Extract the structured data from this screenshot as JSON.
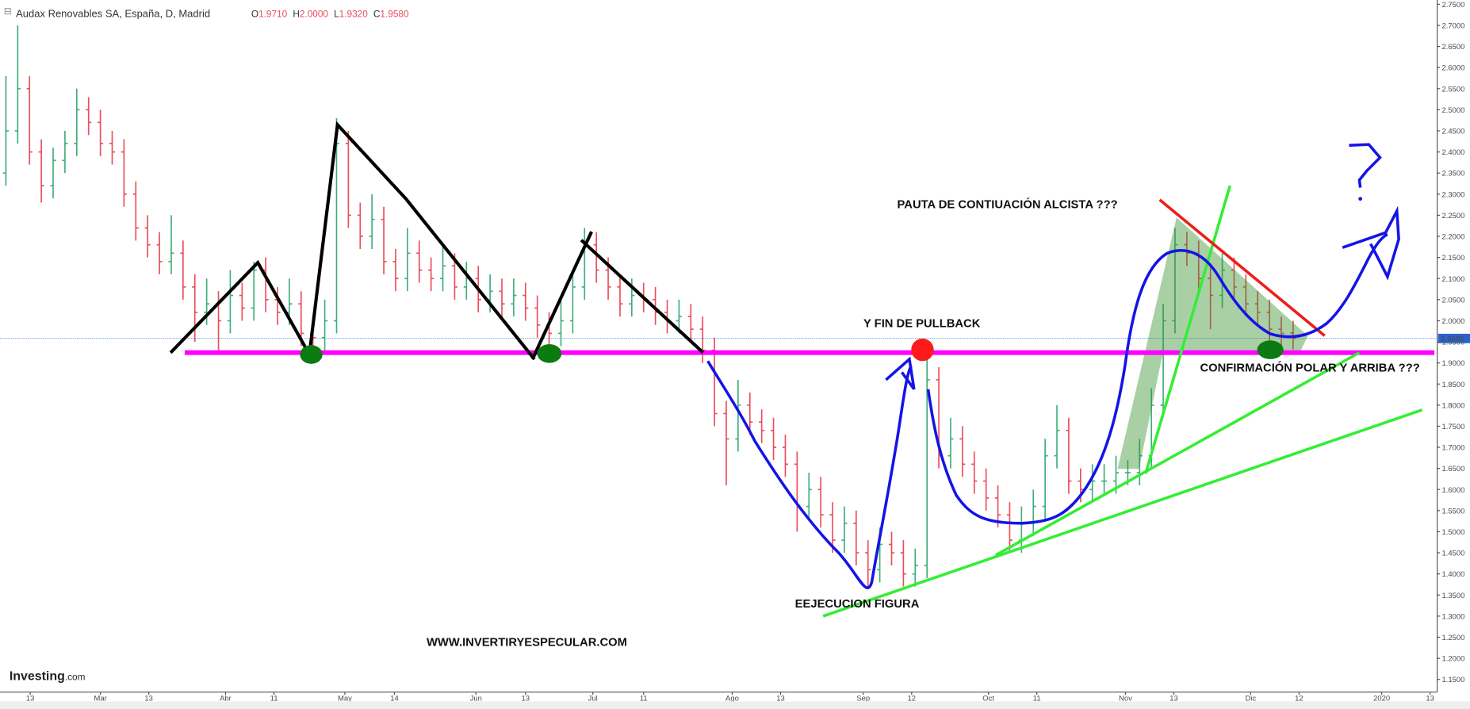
{
  "header": {
    "title": "Audax Renovables SA, España, D, Madrid",
    "ohlc": [
      {
        "key": "O",
        "value": "1.9710"
      },
      {
        "key": "H",
        "value": "2.0000"
      },
      {
        "key": "L",
        "value": "1.9320"
      },
      {
        "key": "C",
        "value": "1.9580"
      }
    ]
  },
  "logo": {
    "brand": "Investing",
    "suffix": ".com"
  },
  "chart_data": {
    "type": "ohlc",
    "up_color": "#3fae7a",
    "down_color": "#eb4d5c",
    "bars": [
      [
        2.35,
        2.58,
        2.32,
        2.45
      ],
      [
        2.45,
        2.7,
        2.42,
        2.55
      ],
      [
        2.55,
        2.58,
        2.37,
        2.4
      ],
      [
        2.4,
        2.43,
        2.28,
        2.32
      ],
      [
        2.32,
        2.41,
        2.29,
        2.38
      ],
      [
        2.38,
        2.45,
        2.35,
        2.42
      ],
      [
        2.42,
        2.55,
        2.39,
        2.5
      ],
      [
        2.5,
        2.53,
        2.44,
        2.47
      ],
      [
        2.47,
        2.5,
        2.39,
        2.42
      ],
      [
        2.42,
        2.45,
        2.37,
        2.4
      ],
      [
        2.4,
        2.43,
        2.27,
        2.3
      ],
      [
        2.3,
        2.33,
        2.19,
        2.22
      ],
      [
        2.22,
        2.25,
        2.15,
        2.18
      ],
      [
        2.18,
        2.21,
        2.11,
        2.14
      ],
      [
        2.14,
        2.25,
        2.11,
        2.16
      ],
      [
        2.16,
        2.19,
        2.05,
        2.08
      ],
      [
        2.08,
        2.11,
        1.95,
        2.02
      ],
      [
        2.02,
        2.1,
        1.99,
        2.04
      ],
      [
        2.04,
        2.07,
        1.93,
        2.0
      ],
      [
        2.0,
        2.12,
        1.97,
        2.06
      ],
      [
        2.06,
        2.09,
        2.0,
        2.03
      ],
      [
        2.03,
        2.14,
        2.0,
        2.12
      ],
      [
        2.12,
        2.15,
        2.02,
        2.05
      ],
      [
        2.05,
        2.08,
        1.99,
        2.02
      ],
      [
        2.02,
        2.1,
        1.99,
        2.04
      ],
      [
        2.04,
        2.07,
        1.94,
        1.97
      ],
      [
        1.97,
        2.0,
        1.93,
        1.96
      ],
      [
        1.96,
        2.05,
        1.93,
        2.0
      ],
      [
        2.0,
        2.48,
        1.97,
        2.42
      ],
      [
        2.42,
        2.45,
        2.22,
        2.25
      ],
      [
        2.25,
        2.28,
        2.17,
        2.2
      ],
      [
        2.2,
        2.3,
        2.17,
        2.24
      ],
      [
        2.24,
        2.27,
        2.11,
        2.14
      ],
      [
        2.14,
        2.17,
        2.07,
        2.1
      ],
      [
        2.1,
        2.22,
        2.07,
        2.16
      ],
      [
        2.16,
        2.19,
        2.09,
        2.12
      ],
      [
        2.12,
        2.15,
        2.07,
        2.1
      ],
      [
        2.1,
        2.18,
        2.07,
        2.13
      ],
      [
        2.13,
        2.16,
        2.05,
        2.08
      ],
      [
        2.08,
        2.14,
        2.05,
        2.1
      ],
      [
        2.1,
        2.13,
        2.02,
        2.05
      ],
      [
        2.05,
        2.11,
        2.02,
        2.07
      ],
      [
        2.07,
        2.1,
        2.01,
        2.04
      ],
      [
        2.04,
        2.1,
        2.01,
        2.06
      ],
      [
        2.06,
        2.09,
        2.0,
        2.03
      ],
      [
        2.03,
        2.06,
        1.96,
        1.99
      ],
      [
        1.99,
        2.02,
        1.94,
        1.97
      ],
      [
        1.97,
        2.05,
        1.94,
        2.0
      ],
      [
        2.0,
        2.12,
        1.97,
        2.08
      ],
      [
        2.08,
        2.22,
        2.05,
        2.18
      ],
      [
        2.18,
        2.21,
        2.09,
        2.12
      ],
      [
        2.12,
        2.15,
        2.05,
        2.08
      ],
      [
        2.08,
        2.11,
        2.01,
        2.04
      ],
      [
        2.04,
        2.1,
        2.01,
        2.06
      ],
      [
        2.06,
        2.09,
        2.02,
        2.05
      ],
      [
        2.05,
        2.08,
        1.99,
        2.02
      ],
      [
        2.02,
        2.05,
        1.97,
        2.0
      ],
      [
        2.0,
        2.05,
        1.97,
        2.01
      ],
      [
        2.01,
        2.04,
        1.95,
        1.98
      ],
      [
        1.98,
        2.01,
        1.9,
        1.93
      ],
      [
        1.93,
        1.96,
        1.75,
        1.78
      ],
      [
        1.78,
        1.81,
        1.61,
        1.72
      ],
      [
        1.72,
        1.86,
        1.69,
        1.8
      ],
      [
        1.8,
        1.83,
        1.73,
        1.76
      ],
      [
        1.76,
        1.79,
        1.71,
        1.74
      ],
      [
        1.74,
        1.77,
        1.67,
        1.7
      ],
      [
        1.7,
        1.73,
        1.63,
        1.66
      ],
      [
        1.66,
        1.69,
        1.5,
        1.56
      ],
      [
        1.56,
        1.64,
        1.53,
        1.6
      ],
      [
        1.6,
        1.63,
        1.51,
        1.54
      ],
      [
        1.54,
        1.57,
        1.45,
        1.48
      ],
      [
        1.48,
        1.56,
        1.45,
        1.52
      ],
      [
        1.52,
        1.55,
        1.42,
        1.45
      ],
      [
        1.45,
        1.48,
        1.37,
        1.41
      ],
      [
        1.41,
        1.51,
        1.38,
        1.47
      ],
      [
        1.47,
        1.5,
        1.42,
        1.45
      ],
      [
        1.45,
        1.48,
        1.37,
        1.4
      ],
      [
        1.4,
        1.46,
        1.37,
        1.42
      ],
      [
        1.42,
        1.92,
        1.39,
        1.86
      ],
      [
        1.86,
        1.89,
        1.65,
        1.68
      ],
      [
        1.68,
        1.77,
        1.65,
        1.72
      ],
      [
        1.72,
        1.75,
        1.63,
        1.66
      ],
      [
        1.66,
        1.69,
        1.59,
        1.62
      ],
      [
        1.62,
        1.65,
        1.55,
        1.58
      ],
      [
        1.58,
        1.61,
        1.51,
        1.54
      ],
      [
        1.54,
        1.57,
        1.45,
        1.48
      ],
      [
        1.48,
        1.56,
        1.45,
        1.52
      ],
      [
        1.52,
        1.6,
        1.49,
        1.56
      ],
      [
        1.56,
        1.72,
        1.53,
        1.68
      ],
      [
        1.68,
        1.8,
        1.65,
        1.74
      ],
      [
        1.74,
        1.77,
        1.59,
        1.62
      ],
      [
        1.62,
        1.65,
        1.57,
        1.6
      ],
      [
        1.6,
        1.66,
        1.57,
        1.62
      ],
      [
        1.62,
        1.66,
        1.59,
        1.62
      ],
      [
        1.62,
        1.68,
        1.59,
        1.64
      ],
      [
        1.64,
        1.67,
        1.61,
        1.64
      ],
      [
        1.64,
        1.72,
        1.61,
        1.68
      ],
      [
        1.68,
        1.84,
        1.65,
        1.8
      ],
      [
        1.8,
        2.04,
        1.77,
        2.0
      ],
      [
        2.0,
        2.22,
        1.97,
        2.18
      ],
      [
        2.18,
        2.21,
        2.13,
        2.16
      ],
      [
        2.16,
        2.19,
        2.07,
        2.1
      ],
      [
        2.1,
        2.13,
        1.98,
        2.06
      ],
      [
        2.06,
        2.16,
        2.03,
        2.12
      ],
      [
        2.12,
        2.15,
        2.05,
        2.08
      ],
      [
        2.08,
        2.11,
        2.01,
        2.04
      ],
      [
        2.04,
        2.07,
        1.99,
        2.02
      ],
      [
        2.02,
        2.05,
        1.95,
        1.98
      ],
      [
        1.98,
        2.01,
        1.94,
        1.97
      ],
      [
        1.971,
        2.0,
        1.932,
        1.958
      ]
    ],
    "xlim": [
      -0.5,
      121.2
    ],
    "xticks": [
      {
        "value": 2.06,
        "label": "13"
      },
      {
        "value": 8.0,
        "label": "Mar"
      },
      {
        "value": 12.1,
        "label": "13"
      },
      {
        "value": 18.6,
        "label": "Abr"
      },
      {
        "value": 22.7,
        "label": "11"
      },
      {
        "value": 28.7,
        "label": "May"
      },
      {
        "value": 32.9,
        "label": "14"
      },
      {
        "value": 39.8,
        "label": "Jun"
      },
      {
        "value": 44.0,
        "label": "13"
      },
      {
        "value": 49.7,
        "label": "Jul"
      },
      {
        "value": 54.0,
        "label": "11"
      },
      {
        "value": 61.5,
        "label": "Ago"
      },
      {
        "value": 65.6,
        "label": "13"
      },
      {
        "value": 72.6,
        "label": "Sep"
      },
      {
        "value": 76.7,
        "label": "12"
      },
      {
        "value": 83.2,
        "label": "Oct"
      },
      {
        "value": 87.3,
        "label": "11"
      },
      {
        "value": 94.8,
        "label": "Nov"
      },
      {
        "value": 98.9,
        "label": "13"
      },
      {
        "value": 105.4,
        "label": "Dic"
      },
      {
        "value": 109.5,
        "label": "12"
      },
      {
        "value": 116.5,
        "label": "2020"
      },
      {
        "value": 120.6,
        "label": "13"
      }
    ],
    "ylim": [
      1.12,
      2.76
    ],
    "yticks": [
      {
        "value": 1.15,
        "label": "1.1500"
      },
      {
        "value": 1.2,
        "label": "1.2000"
      },
      {
        "value": 1.25,
        "label": "1.2500"
      },
      {
        "value": 1.3,
        "label": "1.3000"
      },
      {
        "value": 1.35,
        "label": "1.3500"
      },
      {
        "value": 1.4,
        "label": "1.4000"
      },
      {
        "value": 1.45,
        "label": "1.4500"
      },
      {
        "value": 1.5,
        "label": "1.5000"
      },
      {
        "value": 1.55,
        "label": "1.5500"
      },
      {
        "value": 1.6,
        "label": "1.6000"
      },
      {
        "value": 1.65,
        "label": "1.6500"
      },
      {
        "value": 1.7,
        "label": "1.7000"
      },
      {
        "value": 1.75,
        "label": "1.7500"
      },
      {
        "value": 1.8,
        "label": "1.8000"
      },
      {
        "value": 1.85,
        "label": "1.8500"
      },
      {
        "value": 1.9,
        "label": "1.9000"
      },
      {
        "value": 1.95,
        "label": "1.9500"
      },
      {
        "value": 2.0,
        "label": "2.0000"
      },
      {
        "value": 2.05,
        "label": "2.0500"
      },
      {
        "value": 2.1,
        "label": "2.1000"
      },
      {
        "value": 2.15,
        "label": "2.1500"
      },
      {
        "value": 2.2,
        "label": "2.2000"
      },
      {
        "value": 2.25,
        "label": "2.2500"
      },
      {
        "value": 2.3,
        "label": "2.3000"
      },
      {
        "value": 2.35,
        "label": "2.3500"
      },
      {
        "value": 2.4,
        "label": "2.4000"
      },
      {
        "value": 2.45,
        "label": "2.4500"
      },
      {
        "value": 2.5,
        "label": "2.5000"
      },
      {
        "value": 2.55,
        "label": "2.5500"
      },
      {
        "value": 2.6,
        "label": "2.6000"
      },
      {
        "value": 2.65,
        "label": "2.6500"
      },
      {
        "value": 2.7,
        "label": "2.7000"
      },
      {
        "value": 2.75,
        "label": "2.7500"
      }
    ],
    "last_price": {
      "value": 1.958,
      "label": "1.9580"
    },
    "annotations": [
      "PAUTA DE CONTIUACIÓN ALCISTA ???",
      "Y FIN DE PULLBACK",
      "CONFIRMACIÓN POLAR Y ARRIBA ???",
      "EEJECUCION FIGURA",
      "WWW.INVERTIRYESPECULAR.COM"
    ]
  }
}
